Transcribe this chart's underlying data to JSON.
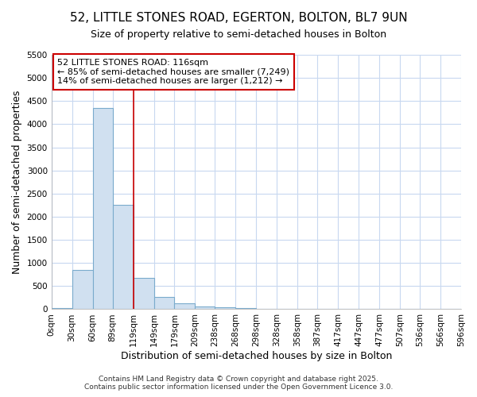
{
  "title": "52, LITTLE STONES ROAD, EGERTON, BOLTON, BL7 9UN",
  "subtitle": "Size of property relative to semi-detached houses in Bolton",
  "xlabel": "Distribution of semi-detached houses by size in Bolton",
  "ylabel": "Number of semi-detached properties",
  "bar_edges": [
    0,
    30,
    60,
    89,
    119,
    149,
    179,
    209,
    238,
    268,
    298,
    328,
    358,
    387,
    417,
    447,
    477,
    507,
    536,
    566,
    596
  ],
  "bar_heights": [
    30,
    850,
    4350,
    2250,
    680,
    260,
    120,
    60,
    50,
    30,
    0,
    0,
    0,
    0,
    0,
    0,
    0,
    0,
    0,
    0
  ],
  "bar_color": "#d0e0f0",
  "bar_edge_color": "#7aabcc",
  "property_line_x": 119,
  "property_line_color": "#cc0000",
  "ylim": [
    0,
    5500
  ],
  "yticks": [
    0,
    500,
    1000,
    1500,
    2000,
    2500,
    3000,
    3500,
    4000,
    4500,
    5000,
    5500
  ],
  "annotation_title": "52 LITTLE STONES ROAD: 116sqm",
  "annotation_line1": "← 85% of semi-detached houses are smaller (7,249)",
  "annotation_line2": "14% of semi-detached houses are larger (1,212) →",
  "annotation_box_color": "#ffffff",
  "annotation_box_edge_color": "#cc0000",
  "footer_line1": "Contains HM Land Registry data © Crown copyright and database right 2025.",
  "footer_line2": "Contains public sector information licensed under the Open Government Licence 3.0.",
  "bg_color": "#ffffff",
  "plot_bg_color": "#ffffff",
  "grid_color": "#c8d8f0",
  "title_fontsize": 11,
  "subtitle_fontsize": 9,
  "axis_label_fontsize": 9,
  "tick_fontsize": 7.5,
  "annotation_fontsize": 8,
  "footer_fontsize": 6.5
}
